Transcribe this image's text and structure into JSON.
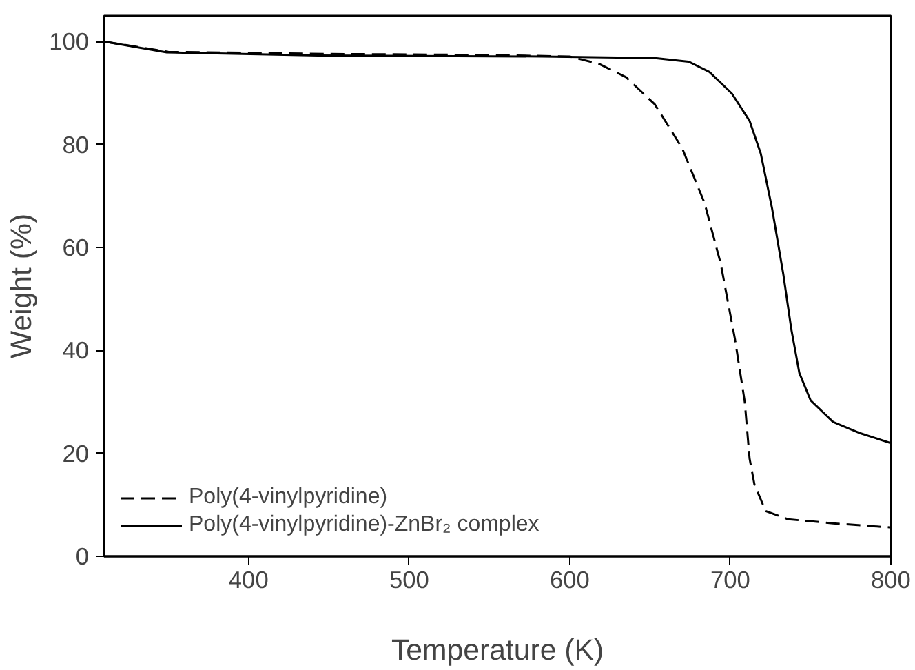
{
  "chart_data": {
    "type": "line",
    "xlabel": "Temperature (K)",
    "ylabel": "Weight (%)",
    "xlim": [
      310,
      800
    ],
    "ylim": [
      0,
      105
    ],
    "xticks": [
      400,
      500,
      600,
      700,
      800
    ],
    "yticks": [
      0,
      20,
      40,
      60,
      80,
      100
    ],
    "grid": false,
    "legend": "bottom left",
    "series": [
      {
        "name": "Poly(4-vinylpyridine)",
        "color": "#000000",
        "line_style": "dashed",
        "x": [
          310,
          350,
          450,
          550,
          600,
          618,
          635,
          653,
          670,
          684,
          694,
          703,
          709,
          712,
          715,
          722,
          736,
          764,
          800
        ],
        "values": [
          100,
          98,
          97.6,
          97.4,
          97.1,
          95.7,
          93.1,
          87.8,
          79.3,
          68.6,
          56.9,
          42,
          30,
          19,
          14,
          8.8,
          7.2,
          6.4,
          5.6
        ]
      },
      {
        "name": "Poly(4-vinylpyridine)-ZnBr₂ complex",
        "color": "#000000",
        "line_style": "solid",
        "x": [
          310,
          349,
          443,
          583,
          653,
          674,
          687,
          701,
          712,
          719,
          726,
          733,
          738,
          743,
          750,
          764,
          781,
          800
        ],
        "values": [
          100,
          97.9,
          97.3,
          97.1,
          96.8,
          96.1,
          94.1,
          89.9,
          84.6,
          78.2,
          67.6,
          54.8,
          44.1,
          35.6,
          30.3,
          26.1,
          23.9,
          22
        ]
      }
    ]
  }
}
